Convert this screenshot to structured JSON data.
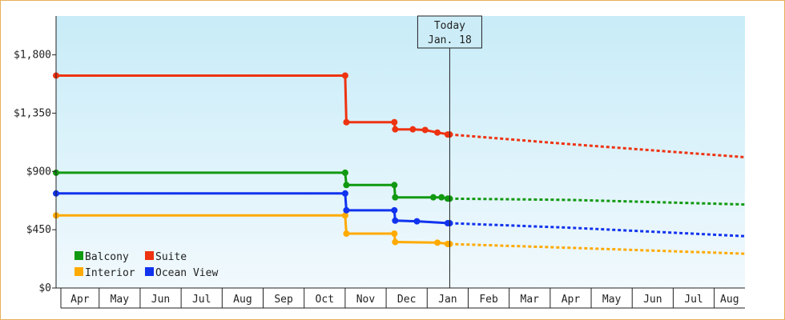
{
  "chart_data": {
    "type": "line",
    "title": "",
    "xlabel": "",
    "ylabel": "",
    "ylim": [
      0,
      2100
    ],
    "y_ticks": [
      0,
      450,
      900,
      1350,
      1800
    ],
    "y_tick_labels": [
      "$0",
      "$450",
      "$900",
      "$1,350",
      "$1,800"
    ],
    "x_month_labels": [
      "Apr",
      "May",
      "Jun",
      "Jul",
      "Aug",
      "Sep",
      "Oct",
      "Nov",
      "Dec",
      "Jan",
      "Feb",
      "Mar",
      "Apr",
      "May",
      "Jun",
      "Jul",
      "Aug"
    ],
    "x_unit": "months since start of Apr (first year)",
    "xlim": [
      -0.05,
      16.75
    ],
    "today": {
      "x": 9.55,
      "line1": "Today",
      "line2": "Jan. 18"
    },
    "grid": false,
    "legend_position": "bottom-left",
    "series": [
      {
        "name": "Balcony",
        "color": "#119911",
        "steps": [
          [
            -0.05,
            890
          ],
          [
            7.0,
            890
          ],
          [
            7.03,
            795
          ],
          [
            8.2,
            795
          ],
          [
            8.22,
            700
          ],
          [
            9.15,
            700
          ],
          [
            9.35,
            700
          ],
          [
            9.55,
            690
          ]
        ],
        "markers": [
          [
            -0.05,
            890
          ],
          [
            7.0,
            890
          ],
          [
            7.03,
            795
          ],
          [
            8.2,
            795
          ],
          [
            8.22,
            700
          ],
          [
            9.15,
            700
          ],
          [
            9.35,
            700
          ],
          [
            9.5,
            690
          ],
          [
            9.55,
            690
          ]
        ],
        "forecast": [
          [
            9.55,
            690
          ],
          [
            12.5,
            680
          ],
          [
            16.75,
            645
          ]
        ]
      },
      {
        "name": "Suite",
        "color": "#ee3311",
        "steps": [
          [
            -0.05,
            1640
          ],
          [
            7.0,
            1640
          ],
          [
            7.03,
            1280
          ],
          [
            8.2,
            1280
          ],
          [
            8.22,
            1225
          ],
          [
            8.65,
            1225
          ],
          [
            8.95,
            1220
          ],
          [
            9.25,
            1200
          ],
          [
            9.55,
            1185
          ]
        ],
        "markers": [
          [
            -0.05,
            1640
          ],
          [
            7.0,
            1640
          ],
          [
            7.03,
            1280
          ],
          [
            8.2,
            1280
          ],
          [
            8.22,
            1225
          ],
          [
            8.65,
            1225
          ],
          [
            8.95,
            1220
          ],
          [
            9.25,
            1200
          ],
          [
            9.5,
            1185
          ],
          [
            9.55,
            1185
          ]
        ],
        "forecast": [
          [
            9.55,
            1185
          ],
          [
            12.5,
            1110
          ],
          [
            16.75,
            1010
          ]
        ]
      },
      {
        "name": "Interior",
        "color": "#ffaa00",
        "steps": [
          [
            -0.05,
            560
          ],
          [
            7.0,
            560
          ],
          [
            7.03,
            420
          ],
          [
            8.2,
            420
          ],
          [
            8.22,
            355
          ],
          [
            9.25,
            350
          ],
          [
            9.55,
            340
          ]
        ],
        "markers": [
          [
            -0.05,
            560
          ],
          [
            7.0,
            560
          ],
          [
            7.03,
            420
          ],
          [
            8.2,
            420
          ],
          [
            8.22,
            355
          ],
          [
            9.25,
            350
          ],
          [
            9.5,
            340
          ],
          [
            9.55,
            340
          ]
        ],
        "forecast": [
          [
            9.55,
            340
          ],
          [
            12.5,
            310
          ],
          [
            16.75,
            265
          ]
        ]
      },
      {
        "name": "Ocean View",
        "color": "#1133ee",
        "steps": [
          [
            -0.05,
            730
          ],
          [
            7.0,
            730
          ],
          [
            7.03,
            600
          ],
          [
            8.2,
            600
          ],
          [
            8.22,
            520
          ],
          [
            8.75,
            515
          ],
          [
            9.55,
            500
          ]
        ],
        "markers": [
          [
            -0.05,
            730
          ],
          [
            7.0,
            730
          ],
          [
            7.03,
            600
          ],
          [
            8.2,
            600
          ],
          [
            8.22,
            520
          ],
          [
            8.75,
            515
          ],
          [
            9.5,
            500
          ],
          [
            9.55,
            500
          ]
        ],
        "forecast": [
          [
            9.55,
            500
          ],
          [
            12.5,
            465
          ],
          [
            16.75,
            400
          ]
        ]
      }
    ],
    "legend": {
      "order": [
        "Balcony",
        "Suite",
        "Interior",
        "Ocean View"
      ],
      "columns": 2
    }
  }
}
